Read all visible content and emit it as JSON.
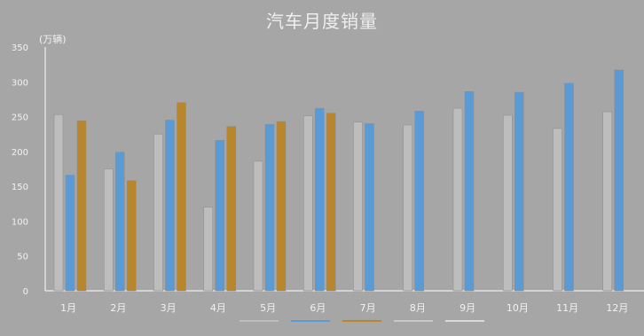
{
  "chart_data": {
    "type": "bar",
    "title": "汽车月度销量",
    "ylabel": "(万辆)",
    "xlabel": "",
    "categories": [
      "1月",
      "2月",
      "3月",
      "4月",
      "5月",
      "6月",
      "7月",
      "8月",
      "9月",
      "10月",
      "11月",
      "12月"
    ],
    "ylim": [
      0,
      350
    ],
    "yticks": [
      0,
      50,
      100,
      150,
      200,
      250,
      300,
      350
    ],
    "series": [
      {
        "values": [
          253,
          175,
          225,
          120,
          186,
          251,
          242,
          238,
          262,
          252,
          233,
          257
        ],
        "color": "#bdbdbd"
      },
      {
        "values": [
          166,
          199,
          245,
          216,
          239,
          262,
          240,
          258,
          286,
          285,
          298,
          317
        ],
        "color": "#5b9bd5"
      },
      {
        "values": [
          244,
          158,
          270,
          236,
          243,
          255,
          null,
          null,
          null,
          null,
          null,
          null
        ],
        "color": "#b8862c"
      }
    ],
    "legend_extra_colors": [
      "#c8c8c8",
      "#d9d9d9"
    ],
    "grid": false,
    "legend_position": "bottom"
  }
}
